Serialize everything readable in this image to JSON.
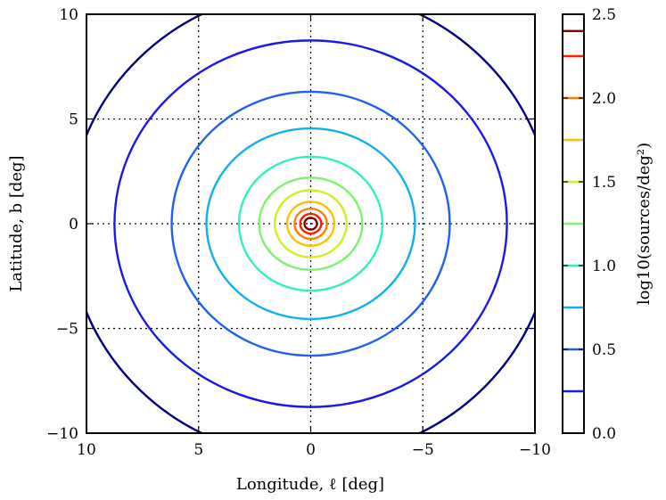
{
  "chart_data": {
    "type": "contour",
    "xlabel": "Longitude, ℓ [deg]",
    "ylabel": "Latitude, b [deg]",
    "colorbar_label": "log10(sources/deg²)",
    "xlim": [
      10,
      -10
    ],
    "ylim": [
      -10,
      10
    ],
    "grid": true,
    "x_ticks": [
      10,
      5,
      0,
      -5,
      -10
    ],
    "x_tick_labels": [
      "10",
      "5",
      "0",
      "−5",
      "−10"
    ],
    "y_ticks": [
      10,
      5,
      0,
      -5,
      -10
    ],
    "y_tick_labels": [
      "10",
      "5",
      "0",
      "−5",
      "−10"
    ],
    "colorbar_range": [
      0.0,
      2.5
    ],
    "colorbar_ticks": [
      0.0,
      0.5,
      1.0,
      1.5,
      2.0,
      2.5
    ],
    "colorbar_tick_labels": [
      "0.0",
      "0.5",
      "1.0",
      "1.5",
      "2.0",
      "2.5"
    ],
    "levels": [
      {
        "level": 0.0,
        "color": "#000080",
        "radius_x": 10.8,
        "radius_y": 11.2
      },
      {
        "level": 0.25,
        "color": "#1a1ae6",
        "radius_x": 8.75,
        "radius_y": 8.75
      },
      {
        "level": 0.5,
        "color": "#2060f0",
        "radius_x": 6.2,
        "radius_y": 6.3
      },
      {
        "level": 0.75,
        "color": "#10b0f0",
        "radius_x": 4.65,
        "radius_y": 4.55
      },
      {
        "level": 1.0,
        "color": "#30f0c0",
        "radius_x": 3.2,
        "radius_y": 3.2
      },
      {
        "level": 1.25,
        "color": "#80f070",
        "radius_x": 2.3,
        "radius_y": 2.2
      },
      {
        "level": 1.5,
        "color": "#d0f020",
        "radius_x": 1.6,
        "radius_y": 1.6
      },
      {
        "level": 1.75,
        "color": "#ffc000",
        "radius_x": 1.05,
        "radius_y": 1.05
      },
      {
        "level": 2.0,
        "color": "#ff8000",
        "radius_x": 0.72,
        "radius_y": 0.72
      },
      {
        "level": 2.25,
        "color": "#ff2000",
        "radius_x": 0.47,
        "radius_y": 0.47
      },
      {
        "level": 2.4,
        "color": "#800000",
        "radius_x": 0.28,
        "radius_y": 0.28
      }
    ]
  }
}
